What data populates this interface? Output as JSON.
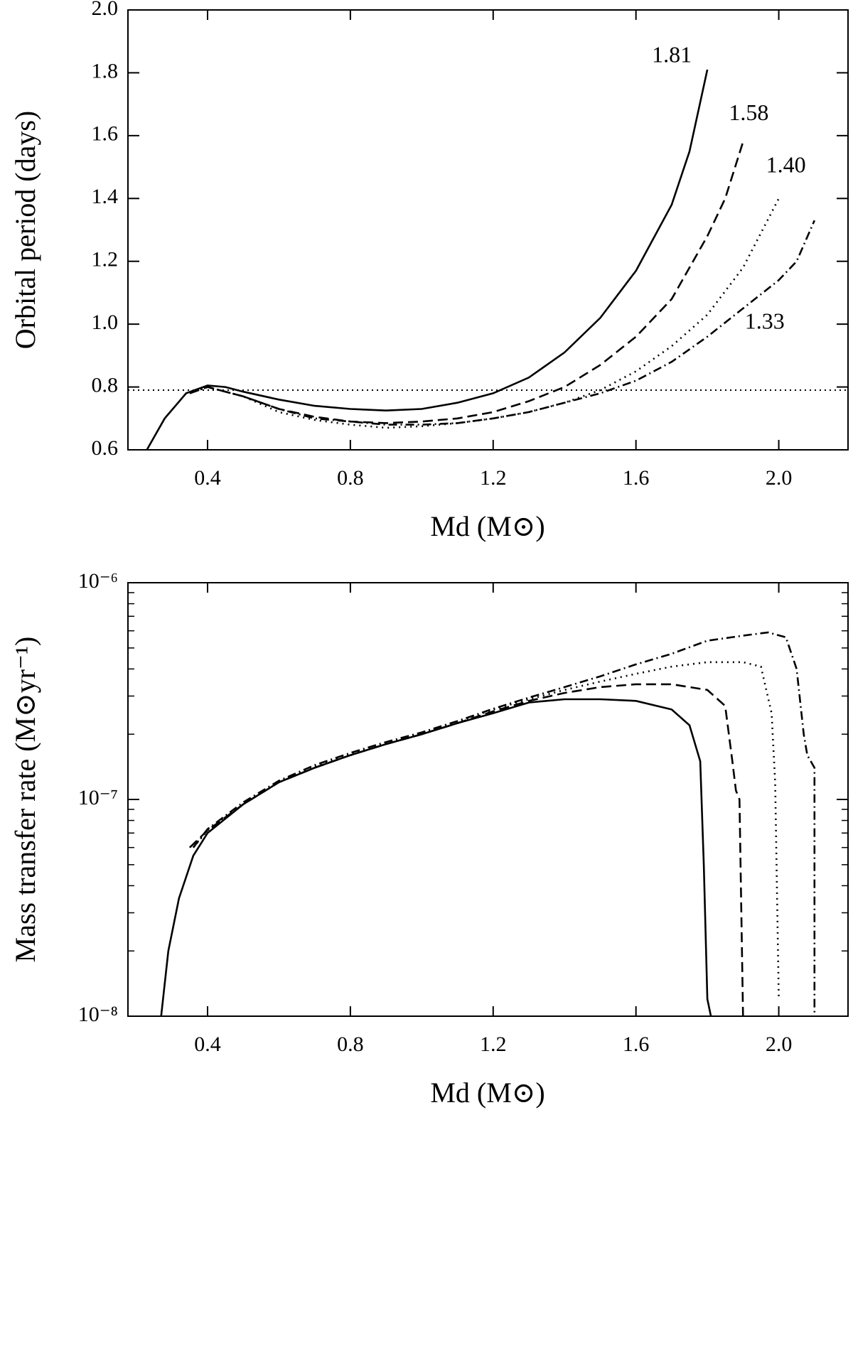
{
  "chart_data": [
    {
      "type": "line",
      "ylabel": "Orbital period (days)",
      "xlabel": "Md (M⊙)",
      "xlim": [
        0.177,
        2.194
      ],
      "ylim": [
        0.6,
        2.0
      ],
      "xticks": [
        0.4,
        0.8,
        1.2,
        {
          "value": 2,
          "label": "2.0"
        }
      ],
      "xticks_extra": [
        1.6
      ],
      "yticks": [
        0.6,
        0.8,
        {
          "value": 1,
          "label": "1.0"
        },
        1.2,
        1.4,
        1.6,
        1.8,
        {
          "value": 2,
          "label": "2.0"
        }
      ],
      "hline": 0.79,
      "series": [
        {
          "name": "1.81",
          "color": "#000000",
          "dash": "solid",
          "x": [
            0.23,
            0.28,
            0.34,
            0.4,
            0.45,
            0.5,
            0.6,
            0.7,
            0.8,
            0.9,
            1.0,
            1.1,
            1.2,
            1.3,
            1.4,
            1.5,
            1.6,
            1.7,
            1.75,
            1.8
          ],
          "values": [
            0.6,
            0.7,
            0.78,
            0.805,
            0.8,
            0.785,
            0.76,
            0.74,
            0.73,
            0.725,
            0.73,
            0.75,
            0.78,
            0.83,
            0.91,
            1.02,
            1.17,
            1.38,
            1.55,
            1.81
          ]
        },
        {
          "name": "1.58",
          "color": "#000000",
          "dash": "dashed",
          "x": [
            0.35,
            0.4,
            0.5,
            0.6,
            0.7,
            0.8,
            0.9,
            1.0,
            1.1,
            1.2,
            1.3,
            1.4,
            1.5,
            1.6,
            1.7,
            1.8,
            1.85,
            1.9
          ],
          "values": [
            0.78,
            0.8,
            0.77,
            0.73,
            0.705,
            0.69,
            0.685,
            0.69,
            0.7,
            0.72,
            0.755,
            0.8,
            0.87,
            0.96,
            1.08,
            1.28,
            1.4,
            1.58
          ]
        },
        {
          "name": "1.40",
          "color": "#000000",
          "dash": "dotted",
          "x": [
            0.35,
            0.4,
            0.5,
            0.6,
            0.7,
            0.8,
            0.9,
            1.0,
            1.1,
            1.2,
            1.3,
            1.4,
            1.5,
            1.6,
            1.7,
            1.8,
            1.9,
            2.0
          ],
          "values": [
            0.78,
            0.8,
            0.77,
            0.72,
            0.695,
            0.68,
            0.67,
            0.675,
            0.685,
            0.7,
            0.72,
            0.75,
            0.79,
            0.85,
            0.93,
            1.03,
            1.18,
            1.4
          ]
        },
        {
          "name": "1.33",
          "color": "#000000",
          "dash": "dashdot",
          "x": [
            0.35,
            0.4,
            0.5,
            0.6,
            0.7,
            0.8,
            0.9,
            1.0,
            1.1,
            1.2,
            1.3,
            1.4,
            1.5,
            1.6,
            1.7,
            1.8,
            1.9,
            2.0,
            2.05,
            2.1
          ],
          "values": [
            0.78,
            0.8,
            0.77,
            0.73,
            0.7,
            0.69,
            0.68,
            0.68,
            0.685,
            0.7,
            0.72,
            0.75,
            0.78,
            0.82,
            0.88,
            0.96,
            1.05,
            1.14,
            1.2,
            1.33
          ]
        }
      ]
    },
    {
      "type": "line",
      "log_y": true,
      "ylabel": "Mass transfer rate (M⊙yr⁻¹)",
      "xlabel": "Md (M⊙)",
      "xlim": [
        0.177,
        2.194
      ],
      "ylim": [
        1e-08,
        1e-06
      ],
      "xticks": [
        0.4,
        0.8,
        1.2,
        1.6,
        {
          "value": 2,
          "label": "2.0"
        }
      ],
      "yticks": [
        {
          "value": 1e-08,
          "label": "10⁻⁸"
        },
        {
          "value": 1e-07,
          "label": "10⁻⁷"
        },
        {
          "value": 1e-06,
          "label": "10⁻⁶"
        }
      ],
      "minor_yticks": [
        2e-08,
        3e-08,
        4e-08,
        5e-08,
        6e-08,
        7e-08,
        8e-08,
        9e-08,
        2e-07,
        3e-07,
        4e-07,
        5e-07,
        6e-07,
        7e-07,
        8e-07,
        9e-07
      ],
      "series": [
        {
          "color": "#000000",
          "dash": "solid",
          "x": [
            0.27,
            0.29,
            0.32,
            0.36,
            0.4,
            0.5,
            0.6,
            0.7,
            0.8,
            0.9,
            1.0,
            1.1,
            1.2,
            1.3,
            1.4,
            1.5,
            1.6,
            1.7,
            1.75,
            1.78,
            1.79,
            1.8,
            1.81
          ],
          "values": [
            1e-08,
            2e-08,
            3.5e-08,
            5.5e-08,
            7e-08,
            9.5e-08,
            1.2e-07,
            1.4e-07,
            1.6e-07,
            1.8e-07,
            2e-07,
            2.25e-07,
            2.5e-07,
            2.8e-07,
            2.9e-07,
            2.9e-07,
            2.85e-07,
            2.6e-07,
            2.2e-07,
            1.5e-07,
            5e-08,
            1.2e-08,
            1e-08
          ]
        },
        {
          "color": "#000000",
          "dash": "dashed",
          "x": [
            0.35,
            0.4,
            0.5,
            0.6,
            0.7,
            0.8,
            0.9,
            1.0,
            1.1,
            1.2,
            1.3,
            1.4,
            1.5,
            1.6,
            1.7,
            1.8,
            1.85,
            1.87,
            1.88,
            1.89,
            1.9
          ],
          "values": [
            6e-08,
            7.2e-08,
            9.5e-08,
            1.2e-07,
            1.4e-07,
            1.6e-07,
            1.8e-07,
            2e-07,
            2.25e-07,
            2.55e-07,
            2.85e-07,
            3.1e-07,
            3.3e-07,
            3.4e-07,
            3.4e-07,
            3.2e-07,
            2.7e-07,
            1.5e-07,
            1.1e-07,
            1e-07,
            1e-08
          ]
        },
        {
          "color": "#000000",
          "dash": "dotted",
          "x": [
            0.36,
            0.4,
            0.5,
            0.6,
            0.7,
            0.8,
            0.9,
            1.0,
            1.1,
            1.2,
            1.3,
            1.4,
            1.5,
            1.6,
            1.7,
            1.8,
            1.9,
            1.95,
            1.98,
            1.99,
            2.0
          ],
          "values": [
            6e-08,
            7.2e-08,
            9.5e-08,
            1.2e-07,
            1.42e-07,
            1.62e-07,
            1.82e-07,
            2.02e-07,
            2.28e-07,
            2.6e-07,
            2.9e-07,
            3.2e-07,
            3.5e-07,
            3.8e-07,
            4.1e-07,
            4.3e-07,
            4.3e-07,
            4.1e-07,
            2.5e-07,
            1.2e-07,
            1.2e-08
          ]
        },
        {
          "color": "#000000",
          "dash": "dashdot",
          "x": [
            0.36,
            0.4,
            0.5,
            0.6,
            0.7,
            0.8,
            0.9,
            1.0,
            1.1,
            1.2,
            1.3,
            1.4,
            1.5,
            1.6,
            1.7,
            1.8,
            1.9,
            1.97,
            2.02,
            2.05,
            2.07,
            2.08,
            2.1,
            2.1
          ],
          "values": [
            6e-08,
            7.3e-08,
            9.7e-08,
            1.22e-07,
            1.44e-07,
            1.64e-07,
            1.84e-07,
            2.04e-07,
            2.3e-07,
            2.62e-07,
            2.95e-07,
            3.3e-07,
            3.7e-07,
            4.2e-07,
            4.7e-07,
            5.4e-07,
            5.7e-07,
            5.9e-07,
            5.6e-07,
            4e-07,
            2e-07,
            1.6e-07,
            1.4e-07,
            1e-08
          ]
        }
      ]
    }
  ]
}
